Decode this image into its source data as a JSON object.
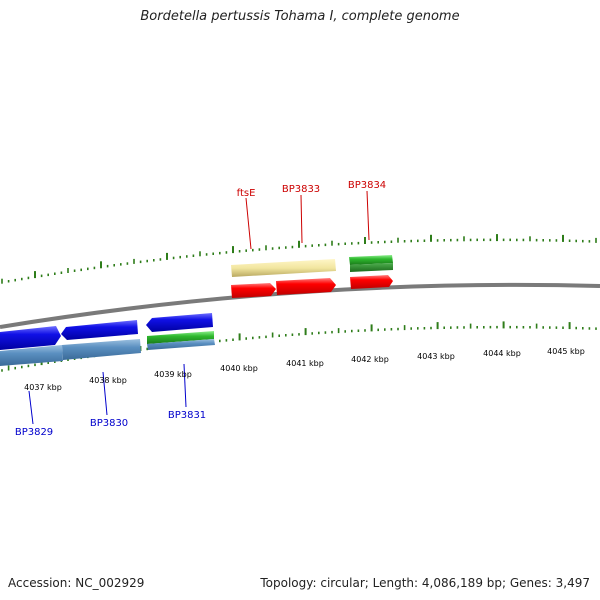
{
  "title": "Bordetella pertussis Tohama I, complete genome",
  "footer": {
    "accession": "Accession: NC_002929",
    "summary": "Topology: circular; Length: 4,086,189 bp; Genes: 3,497"
  },
  "colors": {
    "backbone": "#808080",
    "tick": "#2e7d1a",
    "label_forward": "#cc0000",
    "label_reverse": "#0000cc",
    "gene_red": "#ff0000",
    "gene_blue": "#1010e6",
    "steel_blue": "#5a8fc0",
    "khaki": "#f2e6a0",
    "green": "#2eb82e"
  },
  "scale_labels": [
    "4037 kbp",
    "4038 kbp",
    "4039 kbp",
    "4040 kbp",
    "4041 kbp",
    "4042 kbp",
    "4043 kbp",
    "4044 kbp",
    "4045 kbp"
  ],
  "gene_labels_forward": [
    "ftsE",
    "BP3833",
    "BP3834"
  ],
  "gene_labels_reverse": [
    "BP3829",
    "BP3830",
    "BP3831"
  ]
}
